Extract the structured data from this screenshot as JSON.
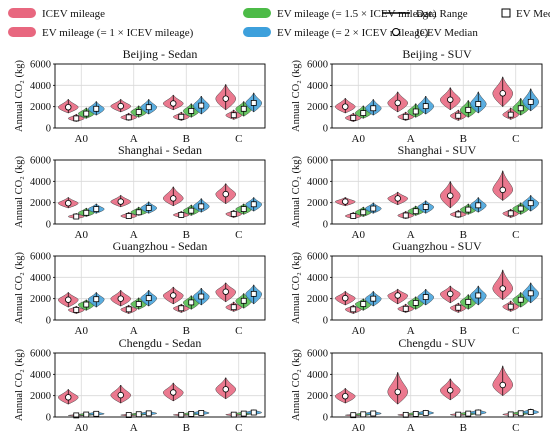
{
  "legend": {
    "items": [
      {
        "label": "ICEV mileage",
        "kind": "swatch",
        "color": "#e8677f"
      },
      {
        "label": "EV mileage (= 1 × ICEV mileage)",
        "kind": "swatch",
        "color": "#e8677f"
      },
      {
        "label": "EV mileage (= 1.5 × ICEV mileage)",
        "kind": "swatch",
        "color": "#4cbb47"
      },
      {
        "label": "EV mileage (= 2 × ICEV mileage)",
        "kind": "swatch",
        "color": "#3da0dc"
      },
      {
        "label": "Data Range",
        "kind": "line",
        "color": "#000000"
      },
      {
        "label": "EV Median",
        "kind": "square",
        "color": "#000000"
      },
      {
        "label": "ICEV Median",
        "kind": "circle",
        "color": "#000000"
      }
    ]
  },
  "chart_data": [
    {
      "type": "violin",
      "title": "Beijing - Sedan",
      "ylabel": "Annual CO₂ (kg)",
      "ylim": [
        0,
        6000
      ],
      "yticks": [
        0,
        2000,
        4000,
        6000
      ],
      "categories": [
        "A0",
        "A",
        "B",
        "C"
      ],
      "grid": true,
      "series": [
        {
          "name": "ICEV mileage",
          "medians": [
            1950,
            2050,
            2300,
            2750
          ],
          "ranges": [
            [
              1400,
              2700
            ],
            [
              1500,
              2700
            ],
            [
              1700,
              3100
            ],
            [
              1700,
              4100
            ]
          ],
          "color": "#e8677f"
        },
        {
          "name": "EV mileage (= 1 × ICEV mileage)",
          "medians": [
            900,
            1000,
            1050,
            1200
          ],
          "ranges": [
            [
              600,
              1300
            ],
            [
              700,
              1400
            ],
            [
              700,
              1500
            ],
            [
              800,
              1700
            ]
          ],
          "color": "#e8677f"
        },
        {
          "name": "EV mileage (= 1.5 × ICEV mileage)",
          "medians": [
            1350,
            1500,
            1600,
            1800
          ],
          "ranges": [
            [
              900,
              1900
            ],
            [
              1000,
              2100
            ],
            [
              1000,
              2300
            ],
            [
              1100,
              2500
            ]
          ],
          "color": "#4cbb47"
        },
        {
          "name": "EV mileage (= 2 × ICEV mileage)",
          "medians": [
            1800,
            1950,
            2100,
            2350
          ],
          "ranges": [
            [
              1200,
              2500
            ],
            [
              1300,
              2700
            ],
            [
              1300,
              3000
            ],
            [
              1500,
              3300
            ]
          ],
          "color": "#3da0dc"
        }
      ]
    },
    {
      "type": "violin",
      "title": "Beijing - SUV",
      "ylabel": "Annual CO₂ (kg)",
      "ylim": [
        0,
        6000
      ],
      "yticks": [
        0,
        2000,
        4000,
        6000
      ],
      "categories": [
        "A0",
        "A",
        "B",
        "C"
      ],
      "grid": true,
      "series": [
        {
          "name": "ICEV mileage",
          "medians": [
            2000,
            2350,
            2650,
            3250
          ],
          "ranges": [
            [
              1400,
              2800
            ],
            [
              1500,
              3400
            ],
            [
              1700,
              3800
            ],
            [
              2000,
              4800
            ]
          ],
          "color": "#e8677f"
        },
        {
          "name": "EV mileage (= 1 × ICEV mileage)",
          "medians": [
            950,
            1050,
            1150,
            1250
          ],
          "ranges": [
            [
              600,
              1400
            ],
            [
              700,
              1500
            ],
            [
              700,
              1700
            ],
            [
              800,
              1900
            ]
          ],
          "color": "#e8677f"
        },
        {
          "name": "EV mileage (= 1.5 × ICEV mileage)",
          "medians": [
            1400,
            1550,
            1700,
            1850
          ],
          "ranges": [
            [
              900,
              2100
            ],
            [
              1000,
              2300
            ],
            [
              1000,
              2600
            ],
            [
              1200,
              2800
            ]
          ],
          "color": "#4cbb47"
        },
        {
          "name": "EV mileage (= 2 × ICEV mileage)",
          "medians": [
            1850,
            2050,
            2250,
            2450
          ],
          "ranges": [
            [
              1200,
              2700
            ],
            [
              1300,
              3000
            ],
            [
              1400,
              3400
            ],
            [
              1600,
              3700
            ]
          ],
          "color": "#3da0dc"
        }
      ]
    },
    {
      "type": "violin",
      "title": "Shanghai - Sedan",
      "ylabel": "Annual CO₂ (kg)",
      "ylim": [
        0,
        6000
      ],
      "yticks": [
        0,
        2000,
        4000,
        6000
      ],
      "categories": [
        "A0",
        "A",
        "B",
        "C"
      ],
      "grid": true,
      "series": [
        {
          "name": "ICEV mileage",
          "medians": [
            1950,
            2100,
            2400,
            2800
          ],
          "ranges": [
            [
              1500,
              2500
            ],
            [
              1600,
              2700
            ],
            [
              1700,
              3500
            ],
            [
              1900,
              3800
            ]
          ],
          "color": "#e8677f"
        },
        {
          "name": "EV mileage (= 1 × ICEV mileage)",
          "medians": [
            700,
            750,
            850,
            950
          ],
          "ranges": [
            [
              500,
              1000
            ],
            [
              500,
              1100
            ],
            [
              600,
              1200
            ],
            [
              600,
              1300
            ]
          ],
          "color": "#e8677f"
        },
        {
          "name": "EV mileage (= 1.5 × ICEV mileage)",
          "medians": [
            1050,
            1100,
            1250,
            1400
          ],
          "ranges": [
            [
              700,
              1500
            ],
            [
              800,
              1600
            ],
            [
              800,
              1800
            ],
            [
              900,
              1900
            ]
          ],
          "color": "#4cbb47"
        },
        {
          "name": "EV mileage (= 2 × ICEV mileage)",
          "medians": [
            1400,
            1500,
            1650,
            1850
          ],
          "ranges": [
            [
              1000,
              1900
            ],
            [
              1000,
              2100
            ],
            [
              1100,
              2400
            ],
            [
              1200,
              2500
            ]
          ],
          "color": "#3da0dc"
        }
      ]
    },
    {
      "type": "violin",
      "title": "Shanghai - SUV",
      "ylabel": "Annual CO₂ (kg)",
      "ylim": [
        0,
        6000
      ],
      "yticks": [
        0,
        2000,
        4000,
        6000
      ],
      "categories": [
        "A0",
        "A",
        "B",
        "C"
      ],
      "grid": true,
      "series": [
        {
          "name": "ICEV mileage",
          "medians": [
            2100,
            2400,
            2650,
            3200
          ],
          "ranges": [
            [
              1700,
              2500
            ],
            [
              1800,
              3000
            ],
            [
              1500,
              4000
            ],
            [
              2200,
              5000
            ]
          ],
          "color": "#e8677f"
        },
        {
          "name": "EV mileage (= 1 × ICEV mileage)",
          "medians": [
            750,
            800,
            900,
            1000
          ],
          "ranges": [
            [
              500,
              1100
            ],
            [
              500,
              1200
            ],
            [
              600,
              1300
            ],
            [
              600,
              1400
            ]
          ],
          "color": "#e8677f"
        },
        {
          "name": "EV mileage (= 1.5 × ICEV mileage)",
          "medians": [
            1100,
            1200,
            1350,
            1450
          ],
          "ranges": [
            [
              700,
              1600
            ],
            [
              800,
              1700
            ],
            [
              900,
              1900
            ],
            [
              900,
              2000
            ]
          ],
          "color": "#4cbb47"
        },
        {
          "name": "EV mileage (= 2 × ICEV mileage)",
          "medians": [
            1450,
            1600,
            1750,
            1950
          ],
          "ranges": [
            [
              1000,
              2000
            ],
            [
              1000,
              2200
            ],
            [
              1100,
              2500
            ],
            [
              1200,
              2700
            ]
          ],
          "color": "#3da0dc"
        }
      ]
    },
    {
      "type": "violin",
      "title": "Guangzhou - Sedan",
      "ylabel": "Annual CO₂ (kg)",
      "ylim": [
        0,
        6000
      ],
      "yticks": [
        0,
        2000,
        4000,
        6000
      ],
      "categories": [
        "A0",
        "A",
        "B",
        "C"
      ],
      "grid": true,
      "series": [
        {
          "name": "ICEV mileage",
          "medians": [
            1900,
            2000,
            2300,
            2650
          ],
          "ranges": [
            [
              1200,
              2600
            ],
            [
              1300,
              2800
            ],
            [
              1500,
              3100
            ],
            [
              1700,
              3500
            ]
          ],
          "color": "#e8677f"
        },
        {
          "name": "EV mileage (= 1 × ICEV mileage)",
          "medians": [
            950,
            1000,
            1100,
            1200
          ],
          "ranges": [
            [
              600,
              1300
            ],
            [
              600,
              1400
            ],
            [
              700,
              1500
            ],
            [
              800,
              1700
            ]
          ],
          "color": "#e8677f"
        },
        {
          "name": "EV mileage (= 1.5 × ICEV mileage)",
          "medians": [
            1450,
            1500,
            1650,
            1800
          ],
          "ranges": [
            [
              900,
              1900
            ],
            [
              1000,
              2100
            ],
            [
              1000,
              2300
            ],
            [
              1100,
              2500
            ]
          ],
          "color": "#4cbb47"
        },
        {
          "name": "EV mileage (= 2 × ICEV mileage)",
          "medians": [
            1950,
            2050,
            2200,
            2450
          ],
          "ranges": [
            [
              1200,
              2600
            ],
            [
              1300,
              2800
            ],
            [
              1400,
              3000
            ],
            [
              1500,
              3300
            ]
          ],
          "color": "#3da0dc"
        }
      ]
    },
    {
      "type": "violin",
      "title": "Guangzhou - SUV",
      "ylabel": "Annual CO₂ (kg)",
      "ylim": [
        0,
        6000
      ],
      "yticks": [
        0,
        2000,
        4000,
        6000
      ],
      "categories": [
        "A0",
        "A",
        "B",
        "C"
      ],
      "grid": true,
      "series": [
        {
          "name": "ICEV mileage",
          "medians": [
            2050,
            2300,
            2450,
            2950
          ],
          "ranges": [
            [
              1400,
              2700
            ],
            [
              1500,
              2900
            ],
            [
              1600,
              3200
            ],
            [
              1900,
              4700
            ]
          ],
          "color": "#e8677f"
        },
        {
          "name": "EV mileage (= 1 × ICEV mileage)",
          "medians": [
            1000,
            1050,
            1150,
            1250
          ],
          "ranges": [
            [
              600,
              1400
            ],
            [
              700,
              1500
            ],
            [
              700,
              1600
            ],
            [
              800,
              1800
            ]
          ],
          "color": "#e8677f"
        },
        {
          "name": "EV mileage (= 1.5 × ICEV mileage)",
          "medians": [
            1500,
            1600,
            1700,
            1900
          ],
          "ranges": [
            [
              900,
              2000
            ],
            [
              1000,
              2200
            ],
            [
              1000,
              2400
            ],
            [
              1200,
              2600
            ]
          ],
          "color": "#4cbb47"
        },
        {
          "name": "EV mileage (= 2 × ICEV mileage)",
          "medians": [
            2000,
            2150,
            2300,
            2500
          ],
          "ranges": [
            [
              1300,
              2700
            ],
            [
              1400,
              2900
            ],
            [
              1400,
              3200
            ],
            [
              1600,
              3500
            ]
          ],
          "color": "#3da0dc"
        }
      ]
    },
    {
      "type": "violin",
      "title": "Chengdu - Sedan",
      "ylabel": "Annual CO₂ (kg)",
      "ylim": [
        0,
        6000
      ],
      "yticks": [
        0,
        2000,
        4000,
        6000
      ],
      "categories": [
        "A0",
        "A",
        "B",
        "C"
      ],
      "grid": true,
      "series": [
        {
          "name": "ICEV mileage",
          "medians": [
            1850,
            2050,
            2300,
            2600
          ],
          "ranges": [
            [
              1200,
              2600
            ],
            [
              1300,
              3000
            ],
            [
              1500,
              3200
            ],
            [
              1700,
              3700
            ]
          ],
          "color": "#e8677f"
        },
        {
          "name": "EV mileage (= 1 × ICEV mileage)",
          "medians": [
            150,
            180,
            200,
            220
          ],
          "ranges": [
            [
              80,
              250
            ],
            [
              90,
              300
            ],
            [
              100,
              330
            ],
            [
              100,
              360
            ]
          ],
          "color": "#e8677f"
        },
        {
          "name": "EV mileage (= 1.5 × ICEV mileage)",
          "medians": [
            230,
            260,
            290,
            320
          ],
          "ranges": [
            [
              120,
              380
            ],
            [
              140,
              430
            ],
            [
              150,
              480
            ],
            [
              160,
              520
            ]
          ],
          "color": "#4cbb47"
        },
        {
          "name": "EV mileage (= 2 × ICEV mileage)",
          "medians": [
            300,
            340,
            380,
            420
          ],
          "ranges": [
            [
              160,
              500
            ],
            [
              180,
              560
            ],
            [
              200,
              620
            ],
            [
              220,
              680
            ]
          ],
          "color": "#3da0dc"
        }
      ]
    },
    {
      "type": "violin",
      "title": "Chengdu - SUV",
      "ylabel": "Annual CO₂ (kg)",
      "ylim": [
        0,
        6000
      ],
      "yticks": [
        0,
        2000,
        4000,
        6000
      ],
      "categories": [
        "A0",
        "A",
        "B",
        "C"
      ],
      "grid": true,
      "series": [
        {
          "name": "ICEV mileage",
          "medians": [
            1950,
            2350,
            2500,
            3000
          ],
          "ranges": [
            [
              1300,
              2700
            ],
            [
              1200,
              4200
            ],
            [
              1600,
              3600
            ],
            [
              2000,
              4800
            ]
          ],
          "color": "#e8677f"
        },
        {
          "name": "EV mileage (= 1 × ICEV mileage)",
          "medians": [
            170,
            200,
            220,
            240
          ],
          "ranges": [
            [
              90,
              280
            ],
            [
              100,
              330
            ],
            [
              110,
              360
            ],
            [
              120,
              400
            ]
          ],
          "color": "#e8677f"
        },
        {
          "name": "EV mileage (= 1.5 × ICEV mileage)",
          "medians": [
            250,
            290,
            320,
            350
          ],
          "ranges": [
            [
              130,
              420
            ],
            [
              150,
              480
            ],
            [
              160,
              520
            ],
            [
              170,
              570
            ]
          ],
          "color": "#4cbb47"
        },
        {
          "name": "EV mileage (= 2 × ICEV mileage)",
          "medians": [
            330,
            380,
            420,
            460
          ],
          "ranges": [
            [
              170,
              560
            ],
            [
              200,
              640
            ],
            [
              220,
              700
            ],
            [
              230,
              760
            ]
          ],
          "color": "#3da0dc"
        }
      ]
    }
  ]
}
